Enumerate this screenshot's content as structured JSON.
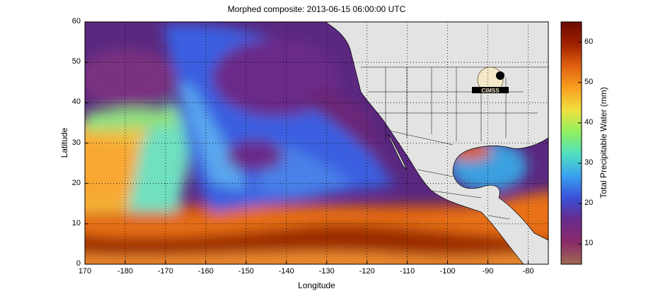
{
  "figure": {
    "title": "Morphed composite: 2013-06-15 06:00:00 UTC",
    "xlabel": "Longitude",
    "ylabel": "Latitude",
    "colorbar_label": "Total Precipitable Water (mm)"
  },
  "map_data": {
    "type": "heatmap",
    "projection": "equirectangular",
    "xlim": [
      170,
      -75
    ],
    "ylim": [
      0,
      60
    ],
    "x_ticks": [
      "170",
      "-180",
      "-170",
      "-160",
      "-150",
      "-140",
      "-130",
      "-120",
      "-110",
      "-100",
      "-90",
      "-80"
    ],
    "y_ticks": [
      "0",
      "10",
      "20",
      "30",
      "40",
      "50",
      "60"
    ],
    "grid": "dotted",
    "land_color": "#e3e3e3",
    "logo": "CIMSS",
    "colorbar": {
      "min": 5,
      "max": 65,
      "ticks": [
        "10",
        "20",
        "30",
        "40",
        "50",
        "60"
      ],
      "colors": [
        "#a06a50",
        "#8a2a6a",
        "#6a2a8a",
        "#3a50d8",
        "#3aa0f0",
        "#50e0c0",
        "#90f060",
        "#f0e040",
        "#f8a020",
        "#e06010",
        "#a02000",
        "#6a0a00"
      ]
    }
  }
}
